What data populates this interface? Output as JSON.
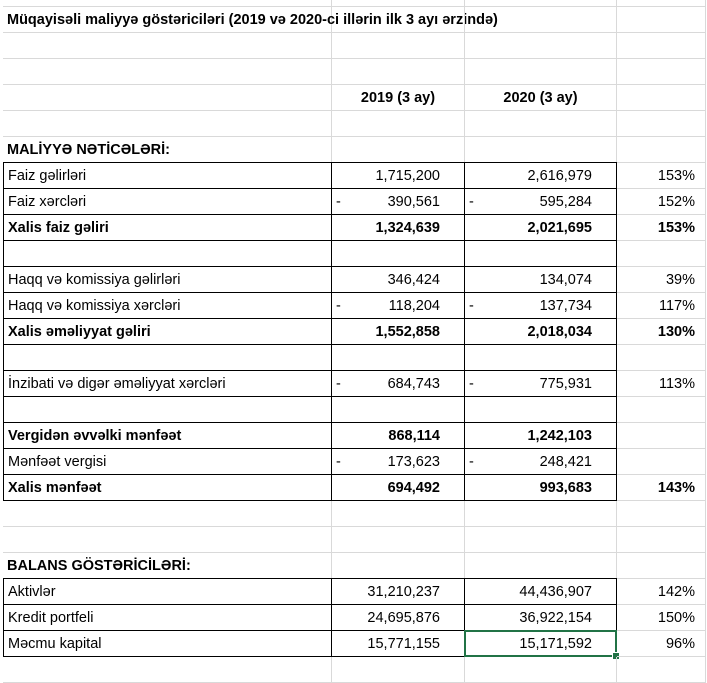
{
  "title": "Müqayisəli maliyyə göstəriciləri (2019 və 2020-ci illərin ilk 3 ayı ərzində)",
  "headers": {
    "y2019": "2019 (3 ay)",
    "y2020": "2020 (3 ay)"
  },
  "section1": "MALİYYƏ NƏTİCƏLƏRİ:",
  "section2": "BALANS GÖSTƏRİCİLƏRİ:",
  "neg_sign": "-",
  "selected_cell": "15,171,592",
  "colors": {
    "selection": "#217346",
    "gridline": "#d9d9d9"
  },
  "rows1": [
    {
      "label": "Faiz gəlirləri",
      "v2019": "1,715,200",
      "v2020": "2,616,979",
      "pct": "153%"
    },
    {
      "label": "Faiz xərcləri",
      "v2019": "390,561",
      "v2020": "595,284",
      "pct": "152%",
      "neg": true
    },
    {
      "label": "Xalis faiz gəliri",
      "v2019": "1,324,639",
      "v2020": "2,021,695",
      "pct": "153%",
      "bold": true
    },
    {
      "blank": true
    },
    {
      "label": "Haqq və komissiya gəlirləri",
      "v2019": "346,424",
      "v2020": "134,074",
      "pct": "39%"
    },
    {
      "label": "Haqq və komissiya xərcləri",
      "v2019": "118,204",
      "v2020": "137,734",
      "pct": "117%",
      "neg": true
    },
    {
      "label": "Xalis əməliyyat gəliri",
      "v2019": "1,552,858",
      "v2020": "2,018,034",
      "pct": "130%",
      "bold": true
    },
    {
      "blank": true
    },
    {
      "label": "İnzibati və digər əməliyyat xərcləri",
      "v2019": "684,743",
      "v2020": "775,931",
      "pct": "113%",
      "neg": true
    },
    {
      "blank": true
    },
    {
      "label": "Vergidən əvvəlki mənfəət",
      "v2019": "868,114",
      "v2020": "1,242,103",
      "pct": "",
      "bold": true
    },
    {
      "label": "Mənfəət vergisi",
      "v2019": "173,623",
      "v2020": "248,421",
      "pct": "",
      "neg": true
    },
    {
      "label": "Xalis mənfəət",
      "v2019": "694,492",
      "v2020": "993,683",
      "pct": "143%",
      "bold": true
    }
  ],
  "rows2": [
    {
      "label": "Aktivlər",
      "v2019": "31,210,237",
      "v2020": "44,436,907",
      "pct": "142%"
    },
    {
      "label": "Kredit portfeli",
      "v2019": "24,695,876",
      "v2020": "36,922,154",
      "pct": "150%"
    },
    {
      "label": "Məcmu kapital",
      "v2019": "15,771,155",
      "v2020": "15,171,592",
      "pct": "96%",
      "selected": true
    }
  ]
}
